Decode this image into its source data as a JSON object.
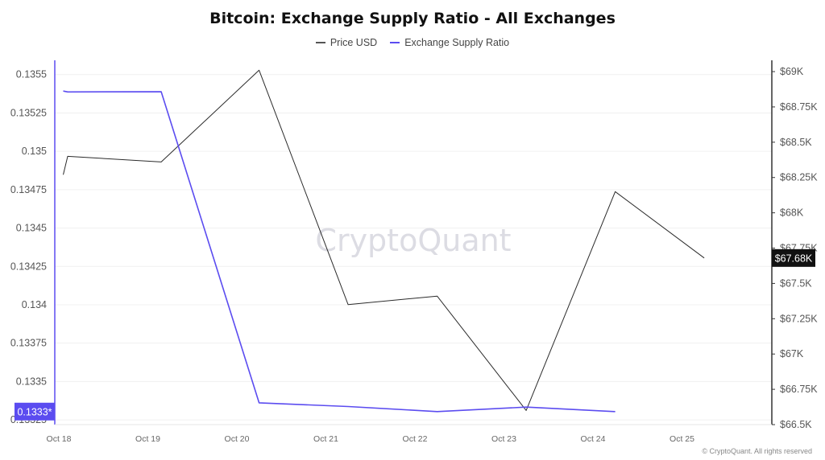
{
  "chart_data": {
    "type": "line",
    "title": "Bitcoin: Exchange Supply Ratio - All Exchanges",
    "categories": [
      "Oct 18",
      "Oct 19",
      "Oct 20",
      "Oct 21",
      "Oct 22",
      "Oct 23",
      "Oct 24",
      "Oct 25"
    ],
    "series": [
      {
        "name": "Price USD",
        "color": "#2b2b2b",
        "axis": "right",
        "x": [
          0.05,
          0.1,
          1.15,
          2.25,
          3.25,
          4.25,
          5.25,
          6.25,
          7.25
        ],
        "values": [
          68270,
          68400,
          68360,
          69010,
          67350,
          67410,
          66600,
          68150,
          67680
        ]
      },
      {
        "name": "Exchange Supply Ratio",
        "color": "#5b4cf0",
        "axis": "left",
        "x": [
          0.05,
          0.1,
          1.15,
          2.25,
          3.25,
          4.25,
          5.25,
          6.25
        ],
        "values": [
          0.135393,
          0.135387,
          0.135388,
          0.133361,
          0.133337,
          0.133304,
          0.133333,
          0.133304
        ]
      }
    ],
    "y_left": {
      "ylim": [
        0.133219,
        0.135593
      ],
      "ticks": [
        "0.1355",
        "0.13525",
        "0.135",
        "0.13475",
        "0.1345",
        "0.13425",
        "0.134",
        "0.13375",
        "0.1335",
        "0.13325"
      ]
    },
    "y_right": {
      "ylim": [
        66500,
        69080
      ],
      "ticks": [
        "$69K",
        "$68.75K",
        "$68.5K",
        "$68.25K",
        "$68K",
        "$67.75K",
        "$67.5K",
        "$67.25K",
        "$67K",
        "$66.75K",
        "$66.5K"
      ]
    },
    "left_current_label": "0.1333*",
    "right_current_label": "$67.68K",
    "watermark": "CryptoQuant",
    "grid": true,
    "legend_position": "top-center"
  },
  "footer": "© CryptoQuant. All rights reserved"
}
